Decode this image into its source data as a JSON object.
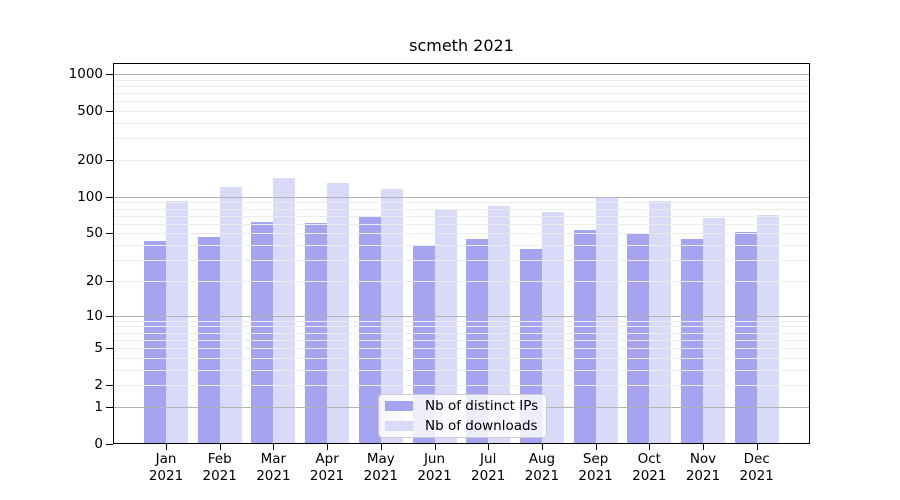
{
  "title": "scmeth 2021",
  "chart_data": {
    "type": "bar",
    "title": "scmeth 2021",
    "categories": [
      "Jan 2021",
      "Feb 2021",
      "Mar 2021",
      "Apr 2021",
      "May 2021",
      "Jun 2021",
      "Jul 2021",
      "Aug 2021",
      "Sep 2021",
      "Oct 2021",
      "Nov 2021",
      "Dec 2021"
    ],
    "series": [
      {
        "name": "Nb of distinct IPs",
        "color": "#a4a4f0",
        "values": [
          43,
          47,
          62,
          61,
          70,
          39,
          45,
          37,
          53,
          50,
          45,
          51
        ]
      },
      {
        "name": "Nb of downloads",
        "color": "#d9d9f8",
        "values": [
          92,
          120,
          144,
          130,
          116,
          80,
          84,
          75,
          98,
          92,
          67,
          71
        ]
      }
    ],
    "xlabel": "",
    "ylabel": "",
    "y_axis": {
      "scale": "log10(1+value)",
      "range": [
        0,
        1000
      ],
      "tick_values": [
        1000,
        500,
        200,
        100,
        50,
        20,
        10,
        5,
        2,
        1,
        0
      ]
    },
    "grid": {
      "on": true,
      "major_values": [
        1,
        10,
        100,
        1000
      ],
      "major_color": "#b3b3b3",
      "minor_color": "#ececec",
      "drawn_over_bars": true
    },
    "legend": {
      "position": "bottom-center-inside",
      "background": "rgba(255,255,255,0.8)",
      "border_color": "#cccccc"
    },
    "frame_color": "#000000",
    "text_color": "#000000"
  }
}
